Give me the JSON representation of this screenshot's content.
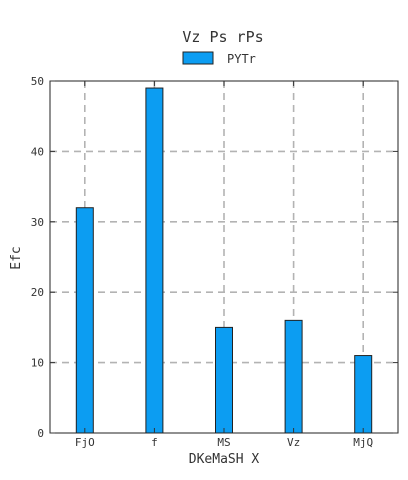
{
  "chart_data": {
    "type": "bar",
    "title": "Vz  Ps rPs",
    "xlabel": "DKeMaSH X",
    "ylabel": "Efc",
    "categories": [
      "FjO",
      "f",
      "MS",
      "Vz",
      "MjQ"
    ],
    "series": [
      {
        "name": "PYTr",
        "values": [
          32,
          49,
          15,
          16,
          11
        ],
        "color": "#0C9DF2"
      }
    ],
    "ylim": [
      0,
      50
    ],
    "yticks": [
      0,
      10,
      20,
      30,
      40,
      50
    ],
    "grid": true,
    "legend_position": "top-center"
  }
}
